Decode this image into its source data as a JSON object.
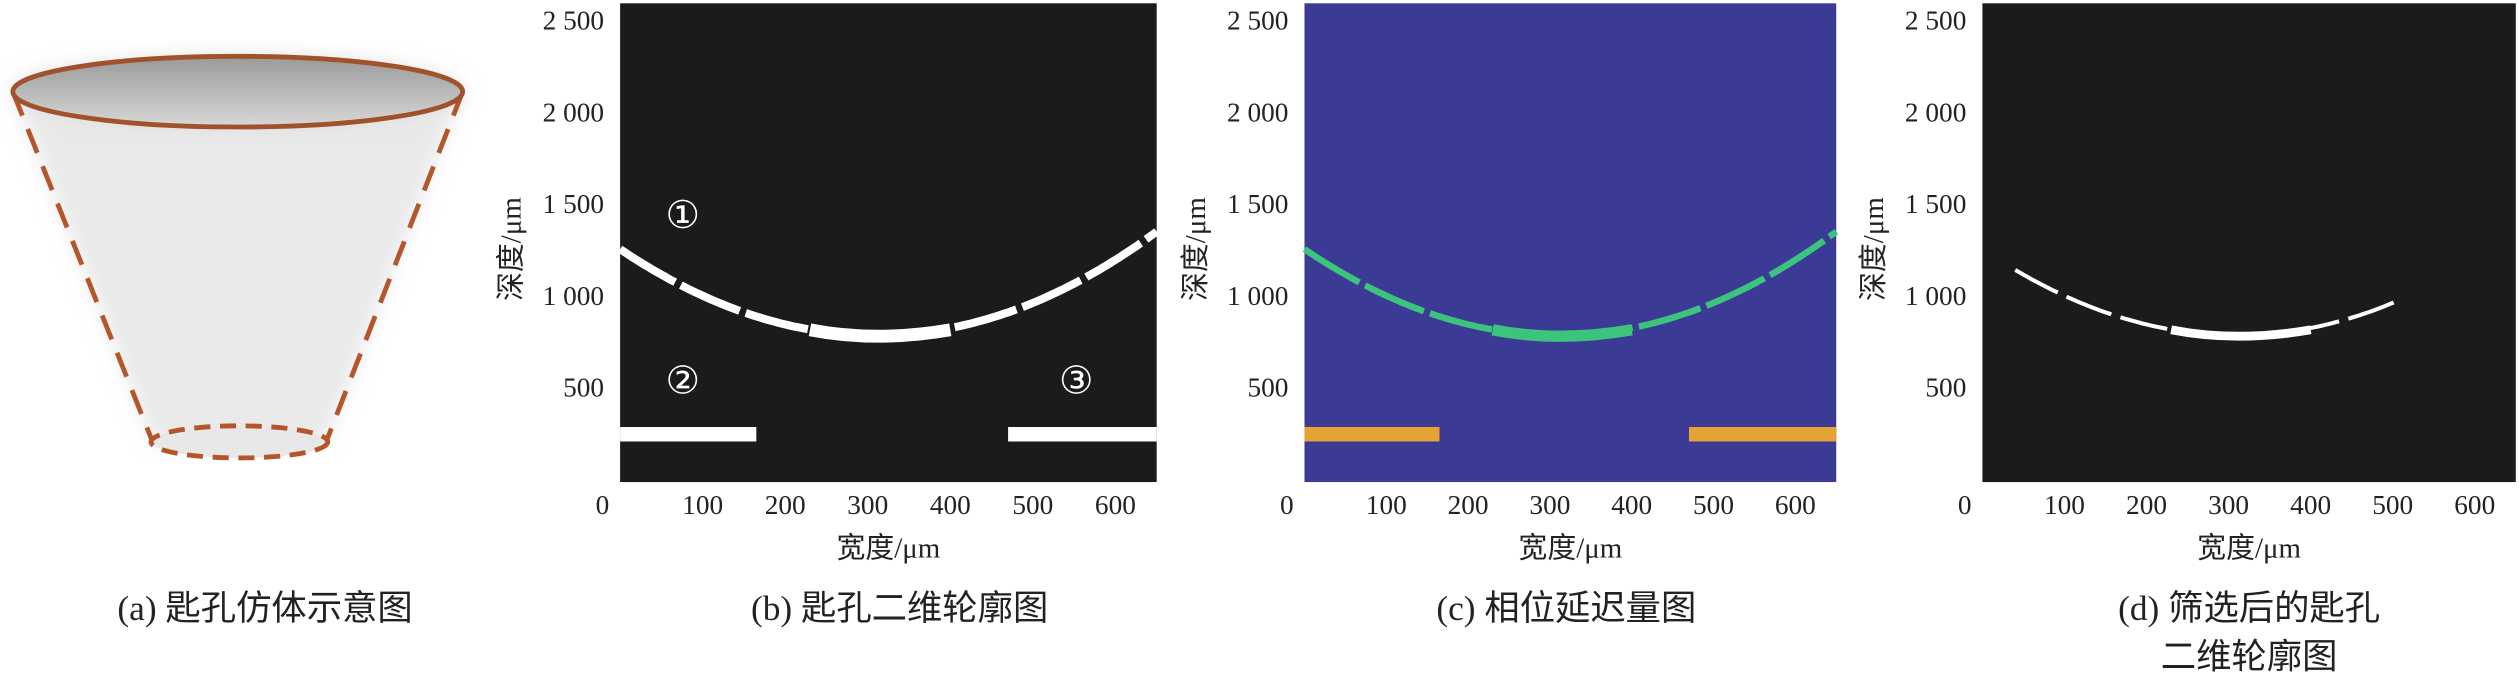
{
  "panels": [
    {
      "caption": [
        "(a) 匙孔仿体示意图"
      ]
    },
    {
      "caption": [
        "(b) 匙孔二维轮廓图"
      ],
      "xlabel": "宽度/μm",
      "ylabel": "深度/μm",
      "xlim": [
        0,
        650
      ],
      "ylim": [
        0,
        2610
      ],
      "xticks": [
        0,
        100,
        200,
        300,
        400,
        500,
        600
      ],
      "yticks": [
        500,
        {
          "value": 1000,
          "label": "1 000"
        },
        {
          "value": 1500,
          "label": "1 500"
        },
        {
          "value": 2000,
          "label": "2 000"
        },
        {
          "value": 2500,
          "label": "2 500"
        }
      ],
      "annotations": [
        "①",
        "②",
        "③"
      ]
    },
    {
      "caption": [
        "(c) 相位延迟量图"
      ],
      "xlabel": "宽度/μm",
      "ylabel": "深度/μm",
      "xlim": [
        0,
        650
      ],
      "ylim": [
        0,
        2610
      ],
      "xticks": [
        0,
        100,
        200,
        300,
        400,
        500,
        600
      ],
      "yticks": [
        500,
        {
          "value": 1000,
          "label": "1 000"
        },
        {
          "value": 1500,
          "label": "1 500"
        },
        {
          "value": 2000,
          "label": "2 000"
        },
        {
          "value": 2500,
          "label": "2 500"
        }
      ]
    },
    {
      "caption": [
        "(d) 筛选后的匙孔",
        "二维轮廓图"
      ],
      "xlabel": "宽度/μm",
      "ylabel": "深度/μm",
      "xlim": [
        0,
        650
      ],
      "ylim": [
        0,
        2610
      ],
      "xticks": [
        0,
        100,
        200,
        300,
        400,
        500,
        600
      ],
      "yticks": [
        500,
        {
          "value": 1000,
          "label": "1 000"
        },
        {
          "value": 1500,
          "label": "1 500"
        },
        {
          "value": 2000,
          "label": "2 000"
        },
        {
          "value": 2500,
          "label": "2 500"
        }
      ]
    }
  ]
}
